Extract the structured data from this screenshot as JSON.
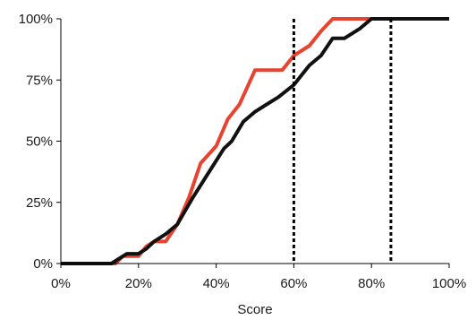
{
  "chart_data": {
    "type": "line",
    "title": "",
    "xlabel": "Score",
    "ylabel": "",
    "xlim": [
      0,
      100
    ],
    "ylim": [
      0,
      100
    ],
    "x_ticks": [
      0,
      20,
      40,
      60,
      80,
      100
    ],
    "x_tick_labels": [
      "0%",
      "20%",
      "40%",
      "60%",
      "80%",
      "100%"
    ],
    "y_ticks": [
      0,
      25,
      50,
      75,
      100
    ],
    "y_tick_labels": [
      "0%",
      "25%",
      "50%",
      "75%",
      "100%"
    ],
    "grid": false,
    "legend": "none",
    "series": [
      {
        "color": "#e8432e",
        "points": [
          [
            0,
            0
          ],
          [
            14,
            0
          ],
          [
            16,
            3
          ],
          [
            20,
            3
          ],
          [
            22,
            7
          ],
          [
            24,
            9
          ],
          [
            27,
            9
          ],
          [
            30,
            16
          ],
          [
            33,
            27
          ],
          [
            36,
            41
          ],
          [
            40,
            48
          ],
          [
            43,
            59
          ],
          [
            46,
            65
          ],
          [
            50,
            79
          ],
          [
            53,
            79
          ],
          [
            57,
            79
          ],
          [
            60,
            85
          ],
          [
            64,
            89
          ],
          [
            67,
            95
          ],
          [
            70,
            100
          ],
          [
            80,
            100
          ],
          [
            85,
            100
          ],
          [
            100,
            100
          ]
        ]
      },
      {
        "color": "#111111",
        "points": [
          [
            0,
            0
          ],
          [
            13,
            0
          ],
          [
            17,
            4
          ],
          [
            20,
            4
          ],
          [
            22,
            6
          ],
          [
            24,
            9
          ],
          [
            27,
            12
          ],
          [
            30,
            16
          ],
          [
            34,
            27
          ],
          [
            38,
            37
          ],
          [
            42,
            47
          ],
          [
            44,
            50
          ],
          [
            47,
            58
          ],
          [
            50,
            62
          ],
          [
            53,
            65
          ],
          [
            56,
            68
          ],
          [
            60,
            73
          ],
          [
            62,
            77
          ],
          [
            64,
            81
          ],
          [
            67,
            85
          ],
          [
            70,
            92
          ],
          [
            73,
            92
          ],
          [
            77,
            96
          ],
          [
            80,
            100
          ],
          [
            85,
            100
          ],
          [
            100,
            100
          ]
        ]
      }
    ],
    "reference_lines": [
      {
        "x": 60,
        "color": "#000000",
        "style": "dotted"
      },
      {
        "x": 85,
        "color": "#000000",
        "style": "dotted"
      }
    ],
    "axis_color": "#000000"
  }
}
